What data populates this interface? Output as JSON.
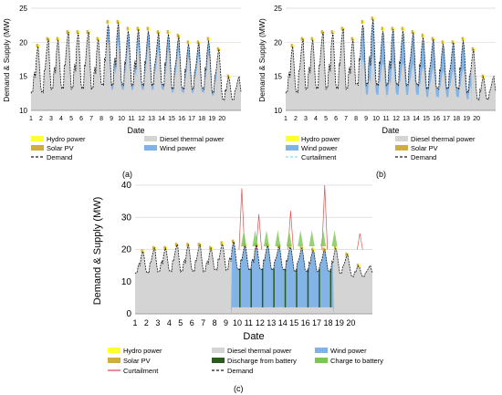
{
  "colors": {
    "hydro": "#ffff33",
    "diesel": "#d4d4d4",
    "wind": "#7fb2e6",
    "solar": "#cfae3f",
    "demand": "#1a1a1a",
    "curtailment_b": "#7fdfff",
    "curtailment_c": "#e05050",
    "discharge": "#2d5a1e",
    "charge": "#7cc653"
  },
  "chart_data": [
    {
      "panel": "(a)",
      "type": "area",
      "ylabel": "Demand & Supply (MW)",
      "xlabel": "Date",
      "ylim": [
        10,
        25
      ],
      "yticks": [
        10,
        15,
        20,
        25
      ],
      "xticks": [
        "1",
        "2",
        "3",
        "4",
        "5",
        "6",
        "7",
        "8",
        "9",
        "10",
        "11",
        "12",
        "13",
        "14",
        "15",
        "16",
        "17",
        "18",
        "19",
        "20"
      ],
      "grid": "horizontal",
      "legend": [
        "Hydro power",
        "Diesel thermal power",
        "Solar PV",
        "Wind power",
        "Demand"
      ],
      "daily_peak": [
        19.5,
        20.5,
        20.5,
        21.5,
        21.5,
        21.5,
        20.5,
        23.0,
        23.0,
        22.0,
        22.0,
        22.0,
        21.5,
        21.5,
        21.0,
        20.0,
        20.0,
        20.5,
        19.0,
        15.0
      ],
      "daily_min": [
        12.5,
        12.5,
        13.0,
        13.0,
        13.0,
        13.0,
        13.0,
        13.5,
        13.5,
        13.5,
        13.5,
        13.5,
        13.5,
        13.5,
        13.0,
        13.0,
        13.0,
        13.0,
        12.5,
        11.5
      ]
    },
    {
      "panel": "(b)",
      "type": "area",
      "ylabel": "Demand & Supply (MW)",
      "xlabel": "Date",
      "ylim": [
        10,
        25
      ],
      "yticks": [
        10,
        15,
        20,
        25
      ],
      "xticks": [
        "1",
        "2",
        "3",
        "4",
        "5",
        "6",
        "7",
        "8",
        "9",
        "10",
        "11",
        "12",
        "13",
        "14",
        "15",
        "16",
        "17",
        "18",
        "19",
        "20"
      ],
      "grid": "horizontal",
      "legend": [
        "Hydro power",
        "Diesel thermal power",
        "Wind power",
        "Solar PV",
        "Curtailment",
        "Demand"
      ],
      "daily_peak": [
        19.5,
        20.5,
        20.5,
        21.5,
        21.5,
        22.0,
        20.5,
        23.0,
        23.5,
        22.0,
        22.0,
        22.0,
        21.5,
        21.0,
        20.5,
        20.0,
        20.0,
        20.5,
        19.0,
        15.0
      ],
      "daily_min": [
        12.5,
        12.5,
        13.0,
        13.0,
        13.0,
        13.0,
        13.0,
        13.5,
        13.5,
        13.5,
        13.5,
        13.5,
        13.5,
        13.5,
        13.0,
        13.0,
        13.0,
        13.0,
        12.5,
        11.5
      ]
    },
    {
      "panel": "(c)",
      "type": "area",
      "ylabel": "Demand & Supply (MW)",
      "xlabel": "Date",
      "ylim": [
        0,
        40
      ],
      "yticks": [
        0,
        10,
        20,
        30,
        40
      ],
      "xticks": [
        "1",
        "2",
        "3",
        "4",
        "5",
        "6",
        "7",
        "8",
        "9",
        "10",
        "11",
        "12",
        "13",
        "14",
        "15",
        "16",
        "17",
        "18",
        "19",
        "20"
      ],
      "grid": "horizontal",
      "legend": [
        "Hydro power",
        "Diesel thermal power",
        "Wind power",
        "Solar PV",
        "Discharge from battery",
        "Charge to battery",
        "Curtailment",
        "Demand"
      ],
      "daily_peak": [
        19.5,
        20.5,
        20.5,
        21.5,
        21.5,
        21.5,
        20.5,
        22.0,
        22.5,
        21.5,
        21.5,
        21.5,
        21.0,
        21.0,
        20.5,
        20.0,
        20.0,
        20.5,
        18.5,
        15.0
      ],
      "daily_min": [
        12.5,
        12.5,
        13.0,
        13.0,
        13.0,
        13.0,
        13.0,
        13.5,
        13.5,
        13.5,
        13.5,
        13.5,
        13.5,
        13.5,
        13.0,
        13.0,
        13.0,
        13.0,
        12.5,
        11.5
      ],
      "curtailment_spikes": [
        [
          10.4,
          39
        ],
        [
          11.9,
          31
        ],
        [
          14.7,
          32
        ],
        [
          17.7,
          40
        ],
        [
          20.8,
          25
        ]
      ]
    }
  ],
  "captions": {
    "a": "(a)",
    "b": "(b)",
    "c": "(c)"
  }
}
